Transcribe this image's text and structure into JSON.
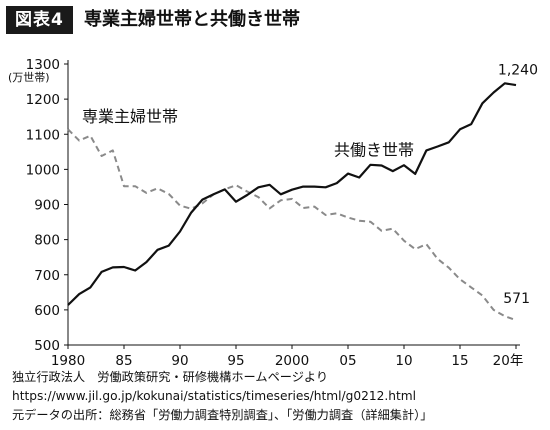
{
  "header": {
    "badge": "図表4",
    "title": "専業主婦世帯と共働き世帯"
  },
  "chart_data": {
    "type": "line",
    "ylabel": "(万世帯)",
    "ylim": [
      500,
      1300
    ],
    "y_ticks": [
      500,
      600,
      700,
      800,
      900,
      1000,
      1100,
      1200,
      1300
    ],
    "xlim": [
      1980,
      2020
    ],
    "x_ticks": [
      1980,
      1985,
      1990,
      1995,
      2000,
      2005,
      2010,
      2015,
      2020
    ],
    "x_tick_labels": [
      "1980",
      "85",
      "90",
      "95",
      "2000",
      "05",
      "10",
      "15",
      "20年"
    ],
    "grid": false,
    "x": [
      1980,
      1981,
      1982,
      1983,
      1984,
      1985,
      1986,
      1987,
      1988,
      1989,
      1990,
      1991,
      1992,
      1993,
      1994,
      1995,
      1996,
      1997,
      1998,
      1999,
      2000,
      2001,
      2002,
      2003,
      2004,
      2005,
      2006,
      2007,
      2008,
      2009,
      2010,
      2011,
      2012,
      2013,
      2014,
      2015,
      2016,
      2017,
      2018,
      2019,
      2020
    ],
    "series": [
      {
        "name": "専業主婦世帯",
        "style": "dashed",
        "color": "#8a8a8a",
        "values": [
          1114,
          1082,
          1096,
          1038,
          1054,
          952,
          952,
          933,
          946,
          930,
          897,
          888,
          903,
          929,
          943,
          955,
          937,
          921,
          889,
          912,
          916,
          890,
          894,
          870,
          875,
          863,
          854,
          851,
          825,
          831,
          797,
          773,
          787,
          745,
          720,
          687,
          664,
          641,
          600,
          582,
          571
        ],
        "end_label": "571"
      },
      {
        "name": "共働き世帯",
        "style": "solid",
        "color": "#111111",
        "values": [
          614,
          645,
          664,
          708,
          721,
          722,
          712,
          736,
          771,
          783,
          823,
          877,
          914,
          929,
          943,
          908,
          927,
          949,
          956,
          929,
          942,
          951,
          951,
          949,
          961,
          988,
          977,
          1013,
          1011,
          995,
          1012,
          987,
          1054,
          1065,
          1077,
          1114,
          1129,
          1188,
          1219,
          1245,
          1240
        ],
        "end_label": "1,240"
      }
    ]
  },
  "source": {
    "line1": "独立行政法人　労働政策研究・研修機構ホームページより",
    "line2": "https://www.jil.go.jp/kokunai/statistics/timeseries/html/g0212.html",
    "line3": "元データの出所：総務省「労働力調査特別調査」、「労働力調査（詳細集計）」"
  }
}
